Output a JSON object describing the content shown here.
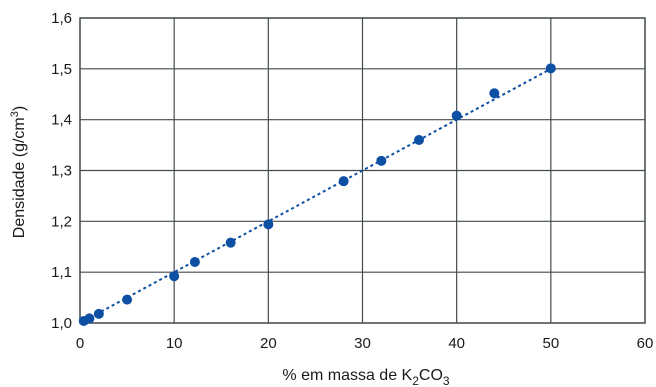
{
  "chart_data": {
    "type": "scatter",
    "xlabel": "% em massa de K₂CO₃",
    "xlabel_parts": {
      "pre": "% em massa de K",
      "sub1": "2",
      "mid": "CO",
      "sub2": "3"
    },
    "ylabel": "Densidade (g/cm³)",
    "ylabel_parts": {
      "pre": "Densidade (g/cm",
      "sup": "3",
      "post": ")"
    },
    "xlim": [
      0,
      60
    ],
    "ylim": [
      1.0,
      1.6
    ],
    "xticks": [
      "0",
      "10",
      "20",
      "30",
      "40",
      "50",
      "60"
    ],
    "yticks": [
      "1,0",
      "1,1",
      "1,2",
      "1,3",
      "1,4",
      "1,5",
      "1,6"
    ],
    "grid": true,
    "marker_color": "#0d4fa3",
    "trendline": {
      "style": "dotted",
      "from": [
        0,
        1.0
      ],
      "to": [
        50,
        1.5
      ]
    },
    "series": [
      {
        "points": [
          [
            0.4,
            1.004
          ],
          [
            1.0,
            1.009
          ],
          [
            2.0,
            1.018
          ],
          [
            5.0,
            1.046
          ],
          [
            10.0,
            1.092
          ],
          [
            12.2,
            1.12
          ],
          [
            16.0,
            1.158
          ],
          [
            20.0,
            1.194
          ],
          [
            28.0,
            1.279
          ],
          [
            32.0,
            1.319
          ],
          [
            36.0,
            1.36
          ],
          [
            40.0,
            1.408
          ],
          [
            44.0,
            1.452
          ],
          [
            50.0,
            1.501
          ]
        ]
      }
    ]
  }
}
